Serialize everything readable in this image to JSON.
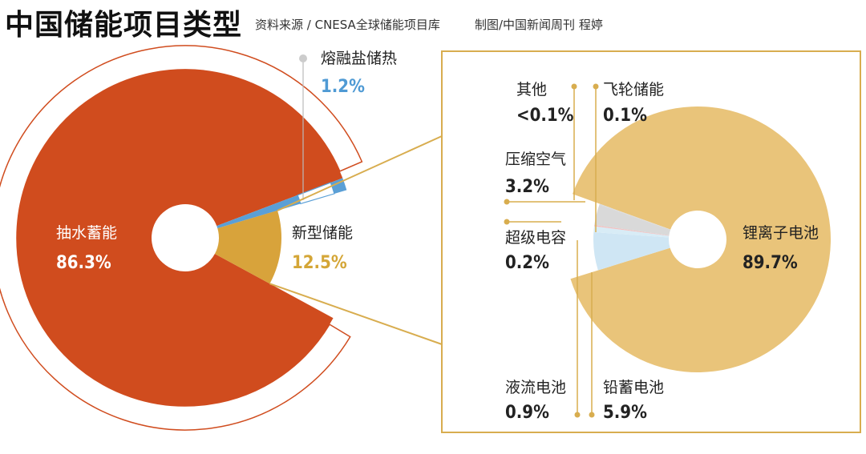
{
  "header": {
    "title": "中国储能项目类型",
    "source": "资料来源 / CNESA全球储能项目库",
    "credit": "制图/中国新闻周刊 程婷"
  },
  "colors": {
    "pumped": "#d04c1e",
    "new_type": "#d8a33b",
    "molten": "#5a9fd6",
    "lithium": "#e9c47a",
    "lead": "#cfe6f4",
    "flow": "#d8ecf6",
    "supercap": "#f2c1c1",
    "air": "#d9d9d9",
    "frame": "#d8ad4f",
    "outline": "#d04c1e"
  },
  "chart_data": [
    {
      "type": "pie",
      "title": "中国储能项目类型",
      "series": [
        {
          "name": "抽水蓄能",
          "value": 86.3,
          "label": "86.3%"
        },
        {
          "name": "熔融盐储热",
          "value": 1.2,
          "label": "1.2%"
        },
        {
          "name": "新型储能",
          "value": 12.5,
          "label": "12.5%"
        }
      ]
    },
    {
      "type": "pie",
      "title": "新型储能",
      "series": [
        {
          "name": "锂离子电池",
          "value": 89.7,
          "label": "89.7%"
        },
        {
          "name": "铅蓄电池",
          "value": 5.9,
          "label": "5.9%"
        },
        {
          "name": "液流电池",
          "value": 0.9,
          "label": "0.9%"
        },
        {
          "name": "超级电容",
          "value": 0.2,
          "label": "0.2%"
        },
        {
          "name": "压缩空气",
          "value": 3.2,
          "label": "3.2%"
        },
        {
          "name": "飞轮储能",
          "value": 0.1,
          "label": "0.1%"
        },
        {
          "name": "其他",
          "value": 0.05,
          "label": "<0.1%"
        }
      ]
    }
  ]
}
